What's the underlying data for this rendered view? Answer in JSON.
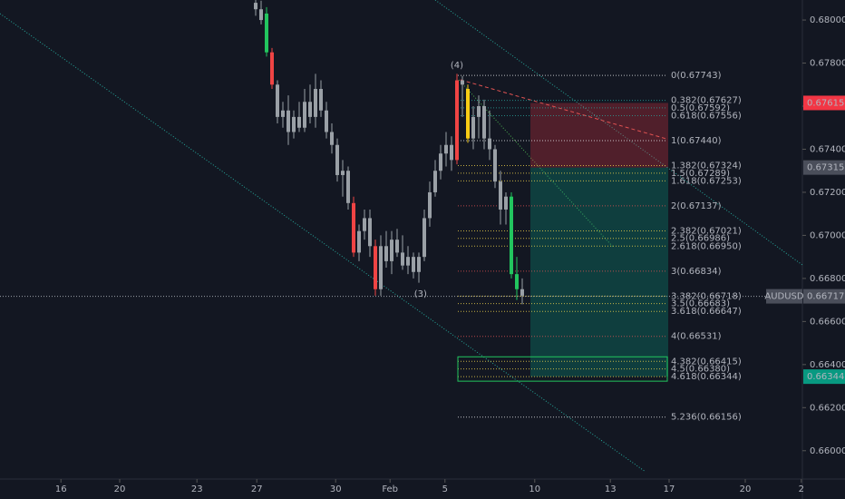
{
  "chart_data": {
    "type": "candlestick",
    "symbol": "AUDUSD",
    "ylim": [
      0.6586,
      0.68093
    ],
    "xlim": [
      0,
      147.5
    ],
    "yticks": [
      {
        "value": 0.68,
        "label": "0.68000"
      },
      {
        "value": 0.678,
        "label": "0.67800"
      },
      {
        "value": 0.676,
        "label": "0.67600"
      },
      {
        "value": 0.674,
        "label": "0.67400"
      },
      {
        "value": 0.672,
        "label": "0.67200"
      },
      {
        "value": 0.67,
        "label": "0.67000"
      },
      {
        "value": 0.668,
        "label": "0.66800"
      },
      {
        "value": 0.666,
        "label": "0.66600"
      },
      {
        "value": 0.664,
        "label": "0.66400"
      },
      {
        "value": 0.662,
        "label": "0.66200"
      },
      {
        "value": 0.66,
        "label": "0.66000"
      }
    ],
    "xticks": [
      {
        "value": 11.2,
        "label": "16"
      },
      {
        "value": 22,
        "label": "20"
      },
      {
        "value": 36.2,
        "label": "23"
      },
      {
        "value": 47.2,
        "label": "27"
      },
      {
        "value": 61.7,
        "label": "30"
      },
      {
        "value": 71.7,
        "label": "Feb"
      },
      {
        "value": 81.8,
        "label": "5"
      },
      {
        "value": 98.3,
        "label": "10"
      },
      {
        "value": 112.2,
        "label": "13"
      },
      {
        "value": 123,
        "label": "17"
      },
      {
        "value": 137,
        "label": "20"
      },
      {
        "value": 147.3,
        "label": "2"
      }
    ],
    "x": [
      47,
      48,
      49,
      50,
      51,
      52,
      53,
      54,
      55,
      56,
      57,
      58,
      59,
      60,
      61,
      62,
      63,
      64,
      65,
      66,
      67,
      68,
      69,
      70,
      71,
      72,
      73,
      74,
      75,
      76,
      77,
      78,
      79,
      80,
      81,
      82,
      83,
      84,
      85,
      86,
      87,
      88,
      89,
      90,
      91,
      92,
      93,
      94,
      95,
      96
    ],
    "open": [
      0.6808,
      0.6805,
      0.6785,
      0.6785,
      0.677,
      0.6755,
      0.6758,
      0.6748,
      0.6755,
      0.675,
      0.6762,
      0.6755,
      0.6768,
      0.6758,
      0.6748,
      0.6742,
      0.6728,
      0.673,
      0.6715,
      0.6692,
      0.6702,
      0.6708,
      0.6695,
      0.6675,
      0.6695,
      0.6688,
      0.6698,
      0.6692,
      0.6686,
      0.669,
      0.6683,
      0.669,
      0.6708,
      0.672,
      0.673,
      0.6738,
      0.6742,
      0.6735,
      0.6772,
      0.6768,
      0.6745,
      0.6755,
      0.676,
      0.6745,
      0.674,
      0.6725,
      0.6712,
      0.6718,
      0.6682,
      0.6675
    ],
    "high": [
      0.6812,
      0.6809,
      0.6806,
      0.6787,
      0.6772,
      0.6762,
      0.6765,
      0.6758,
      0.6762,
      0.6768,
      0.677,
      0.6775,
      0.6772,
      0.6762,
      0.6752,
      0.6745,
      0.6735,
      0.6732,
      0.6718,
      0.6705,
      0.6712,
      0.6712,
      0.6698,
      0.67,
      0.6702,
      0.6702,
      0.6703,
      0.67,
      0.6695,
      0.6692,
      0.6692,
      0.6712,
      0.6725,
      0.6735,
      0.6742,
      0.6748,
      0.6746,
      0.6775,
      0.6774,
      0.677,
      0.676,
      0.6765,
      0.6763,
      0.6758,
      0.6742,
      0.673,
      0.672,
      0.672,
      0.669,
      0.668
    ],
    "low": [
      0.6802,
      0.6798,
      0.6783,
      0.6768,
      0.6752,
      0.675,
      0.6742,
      0.6745,
      0.6748,
      0.6748,
      0.6752,
      0.675,
      0.6755,
      0.6745,
      0.6738,
      0.6725,
      0.6718,
      0.6712,
      0.669,
      0.6688,
      0.6698,
      0.669,
      0.6672,
      0.6672,
      0.6685,
      0.6682,
      0.669,
      0.6684,
      0.6682,
      0.668,
      0.6678,
      0.6688,
      0.6704,
      0.6718,
      0.6726,
      0.6732,
      0.673,
      0.6733,
      0.6755,
      0.6743,
      0.674,
      0.6745,
      0.674,
      0.6735,
      0.6722,
      0.6705,
      0.6705,
      0.668,
      0.667,
      0.6668
    ],
    "close": [
      0.6805,
      0.68,
      0.6803,
      0.677,
      0.6755,
      0.6758,
      0.6748,
      0.6755,
      0.675,
      0.6762,
      0.6755,
      0.6768,
      0.6758,
      0.6748,
      0.6742,
      0.6728,
      0.673,
      0.6715,
      0.6692,
      0.6702,
      0.6708,
      0.6695,
      0.6675,
      0.6695,
      0.6688,
      0.6698,
      0.6692,
      0.6686,
      0.669,
      0.6683,
      0.669,
      0.6708,
      0.672,
      0.673,
      0.6738,
      0.6742,
      0.6735,
      0.6772,
      0.677,
      0.6745,
      0.6755,
      0.676,
      0.6745,
      0.674,
      0.6725,
      0.6712,
      0.6718,
      0.6682,
      0.6675,
      0.6672
    ],
    "colors": [
      null,
      null,
      "#22c55e",
      "#ef4444",
      null,
      null,
      null,
      null,
      null,
      null,
      null,
      null,
      null,
      null,
      null,
      null,
      null,
      null,
      "#ef4444",
      null,
      null,
      null,
      "#ef4444",
      null,
      null,
      null,
      null,
      null,
      null,
      null,
      null,
      null,
      null,
      null,
      null,
      null,
      null,
      "#ef4444",
      null,
      "#facc15",
      null,
      null,
      null,
      null,
      null,
      null,
      null,
      "#22c55e",
      "#22c55e",
      null
    ],
    "candle_color": "#9aa0a6",
    "annotations": [
      {
        "text": "(4)",
        "x": 84,
        "y": 0.6779,
        "color": "#22c55e"
      },
      {
        "text": "(3)",
        "x": 77.3,
        "y": 0.66728,
        "color": "#22c55e"
      }
    ],
    "fib": [
      {
        "label": "0(0.67743)",
        "value": 0.67743,
        "color": "#e5e7eb"
      },
      {
        "label": "0.382(0.67627)",
        "value": 0.67627,
        "color": "#2aa39a"
      },
      {
        "label": "0.5(0.67592)",
        "value": 0.67592,
        "color": "#2aa39a"
      },
      {
        "label": "0.618(0.67556)",
        "value": 0.67556,
        "color": "#2aa39a"
      },
      {
        "label": "1(0.67440)",
        "value": 0.6744,
        "color": "#e5e7eb"
      },
      {
        "label": "1.382(0.67324)",
        "value": 0.67324,
        "color": "#f0d34a"
      },
      {
        "label": "1.5(0.67289)",
        "value": 0.67289,
        "color": "#f0d34a"
      },
      {
        "label": "1.618(0.67253)",
        "value": 0.67253,
        "color": "#f0d34a"
      },
      {
        "label": "2(0.67137)",
        "value": 0.67137,
        "color": "#e05252"
      },
      {
        "label": "2.382(0.67021)",
        "value": 0.67021,
        "color": "#f0d34a"
      },
      {
        "label": "2.5(0.66986)",
        "value": 0.66986,
        "color": "#f0d34a"
      },
      {
        "label": "2.618(0.66950)",
        "value": 0.6695,
        "color": "#f0d34a"
      },
      {
        "label": "3(0.66834)",
        "value": 0.66834,
        "color": "#e05252"
      },
      {
        "label": "3.382(0.66718)",
        "value": 0.66718,
        "color": "#f0d34a"
      },
      {
        "label": "3.5(0.66683)",
        "value": 0.66683,
        "color": "#f0d34a"
      },
      {
        "label": "3.618(0.66647)",
        "value": 0.66647,
        "color": "#f0d34a"
      },
      {
        "label": "4(0.66531)",
        "value": 0.66531,
        "color": "#e05252"
      },
      {
        "label": "4.382(0.66415)",
        "value": 0.66415,
        "color": "#f0d34a"
      },
      {
        "label": "4.5(0.66380)",
        "value": 0.6638,
        "color": "#f0d34a"
      },
      {
        "label": "4.618(0.66344)",
        "value": 0.66344,
        "color": "#f0d34a"
      },
      {
        "label": "5.236(0.66156)",
        "value": 0.66156,
        "color": "#e5e7eb"
      }
    ],
    "badges": [
      {
        "value": 0.67615,
        "label": "0.67615",
        "color": "#f23645"
      },
      {
        "value": 0.67315,
        "label": "0.67315",
        "color": "#4a4e5a"
      },
      {
        "value": 0.66717,
        "label": "0.66717",
        "color": "#4a4e5a"
      },
      {
        "value": 0.66344,
        "label": "0.66344",
        "color": "#089981"
      }
    ]
  }
}
